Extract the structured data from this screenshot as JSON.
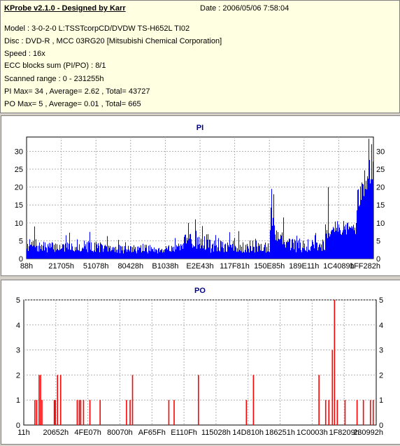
{
  "header": {
    "title": "KProbe v2.1.0 - Designed by Karr",
    "date": "Date : 2006/05/06 7:58:04",
    "lines": [
      "Model : 3-0-2-0 L:TSSTcorpCD/DVDW TS-H652L TI02",
      "Disc : DVD-R , MCC 03RG20   [Mitsubishi Chemical Corporation]",
      "Speed : 16x",
      "ECC blocks sum (PI/PO) : 8/1",
      "Scanned range : 0 - 231255h",
      "PI Max= 34 , Average= 2.62 , Total= 43727",
      "PO Max= 5 , Average= 0.01 , Total= 665"
    ]
  },
  "chart_data": [
    {
      "type": "bar",
      "title": "PI",
      "ylim": [
        0,
        34
      ],
      "yticks": [
        0,
        5,
        10,
        15,
        20,
        25,
        30
      ],
      "xticks": [
        "88h",
        "21705h",
        "51078h",
        "80428h",
        "B1038h",
        "E2E43h",
        "117F81h",
        "150E85h",
        "189E11h",
        "1C4089h",
        "1FF282h"
      ],
      "color": "#0000ff",
      "grid": true,
      "segments": [
        {
          "from": 0.0,
          "to": 0.03,
          "base": 3.2,
          "spread": 3.5
        },
        {
          "from": 0.03,
          "to": 0.22,
          "base": 2.8,
          "spread": 3.0
        },
        {
          "from": 0.22,
          "to": 0.4,
          "base": 2.3,
          "spread": 2.5
        },
        {
          "from": 0.4,
          "to": 0.45,
          "base": 2.6,
          "spread": 2.5
        },
        {
          "from": 0.45,
          "to": 0.53,
          "base": 4.0,
          "spread": 4.5
        },
        {
          "from": 0.53,
          "to": 0.7,
          "base": 2.8,
          "spread": 3.5
        },
        {
          "from": 0.7,
          "to": 0.715,
          "base": 9.0,
          "spread": 9.0
        },
        {
          "from": 0.715,
          "to": 0.74,
          "base": 5.0,
          "spread": 5.0
        },
        {
          "from": 0.74,
          "to": 0.86,
          "base": 3.2,
          "spread": 4.0
        },
        {
          "from": 0.86,
          "to": 0.88,
          "base": 7.0,
          "spread": 7.0
        },
        {
          "from": 0.88,
          "to": 0.95,
          "base": 8.0,
          "spread": 4.0
        },
        {
          "from": 0.95,
          "to": 1.0,
          "base": 15.0,
          "spread": 13.0
        }
      ],
      "spikes": [
        {
          "x": 0.022,
          "v": 9
        },
        {
          "x": 0.465,
          "v": 10
        },
        {
          "x": 0.485,
          "v": 11
        },
        {
          "x": 0.705,
          "v": 19.5
        },
        {
          "x": 0.712,
          "v": 18
        },
        {
          "x": 0.868,
          "v": 20
        },
        {
          "x": 0.985,
          "v": 33.5
        },
        {
          "x": 0.993,
          "v": 32
        }
      ]
    },
    {
      "type": "bar",
      "title": "PO",
      "ylim": [
        0,
        5
      ],
      "yticks": [
        0,
        1,
        2,
        3,
        4,
        5
      ],
      "xticks": [
        "11h",
        "20652h",
        "4FE07h",
        "80070h",
        "AF65Fh",
        "E110Fh",
        "115028h",
        "14D810h",
        "186251h",
        "1C0003h",
        "1F8209h",
        "230992h"
      ],
      "color": "#ff0000",
      "grid": true,
      "bars": [
        {
          "x": 0.03,
          "v": 1
        },
        {
          "x": 0.035,
          "v": 1
        },
        {
          "x": 0.042,
          "v": 2
        },
        {
          "x": 0.046,
          "v": 2
        },
        {
          "x": 0.05,
          "v": 1
        },
        {
          "x": 0.085,
          "v": 1
        },
        {
          "x": 0.088,
          "v": 1
        },
        {
          "x": 0.094,
          "v": 2
        },
        {
          "x": 0.103,
          "v": 2
        },
        {
          "x": 0.15,
          "v": 1
        },
        {
          "x": 0.156,
          "v": 1
        },
        {
          "x": 0.16,
          "v": 1
        },
        {
          "x": 0.168,
          "v": 1
        },
        {
          "x": 0.186,
          "v": 1
        },
        {
          "x": 0.215,
          "v": 1
        },
        {
          "x": 0.29,
          "v": 1
        },
        {
          "x": 0.3,
          "v": 1
        },
        {
          "x": 0.307,
          "v": 2
        },
        {
          "x": 0.41,
          "v": 1
        },
        {
          "x": 0.425,
          "v": 1
        },
        {
          "x": 0.494,
          "v": 2
        },
        {
          "x": 0.63,
          "v": 1
        },
        {
          "x": 0.65,
          "v": 2
        },
        {
          "x": 0.836,
          "v": 2
        },
        {
          "x": 0.855,
          "v": 1
        },
        {
          "x": 0.864,
          "v": 1
        },
        {
          "x": 0.874,
          "v": 3
        },
        {
          "x": 0.88,
          "v": 5
        },
        {
          "x": 0.888,
          "v": 1
        },
        {
          "x": 0.91,
          "v": 1
        },
        {
          "x": 0.944,
          "v": 1
        },
        {
          "x": 0.962,
          "v": 1
        },
        {
          "x": 0.982,
          "v": 1
        },
        {
          "x": 0.99,
          "v": 1
        }
      ]
    }
  ]
}
